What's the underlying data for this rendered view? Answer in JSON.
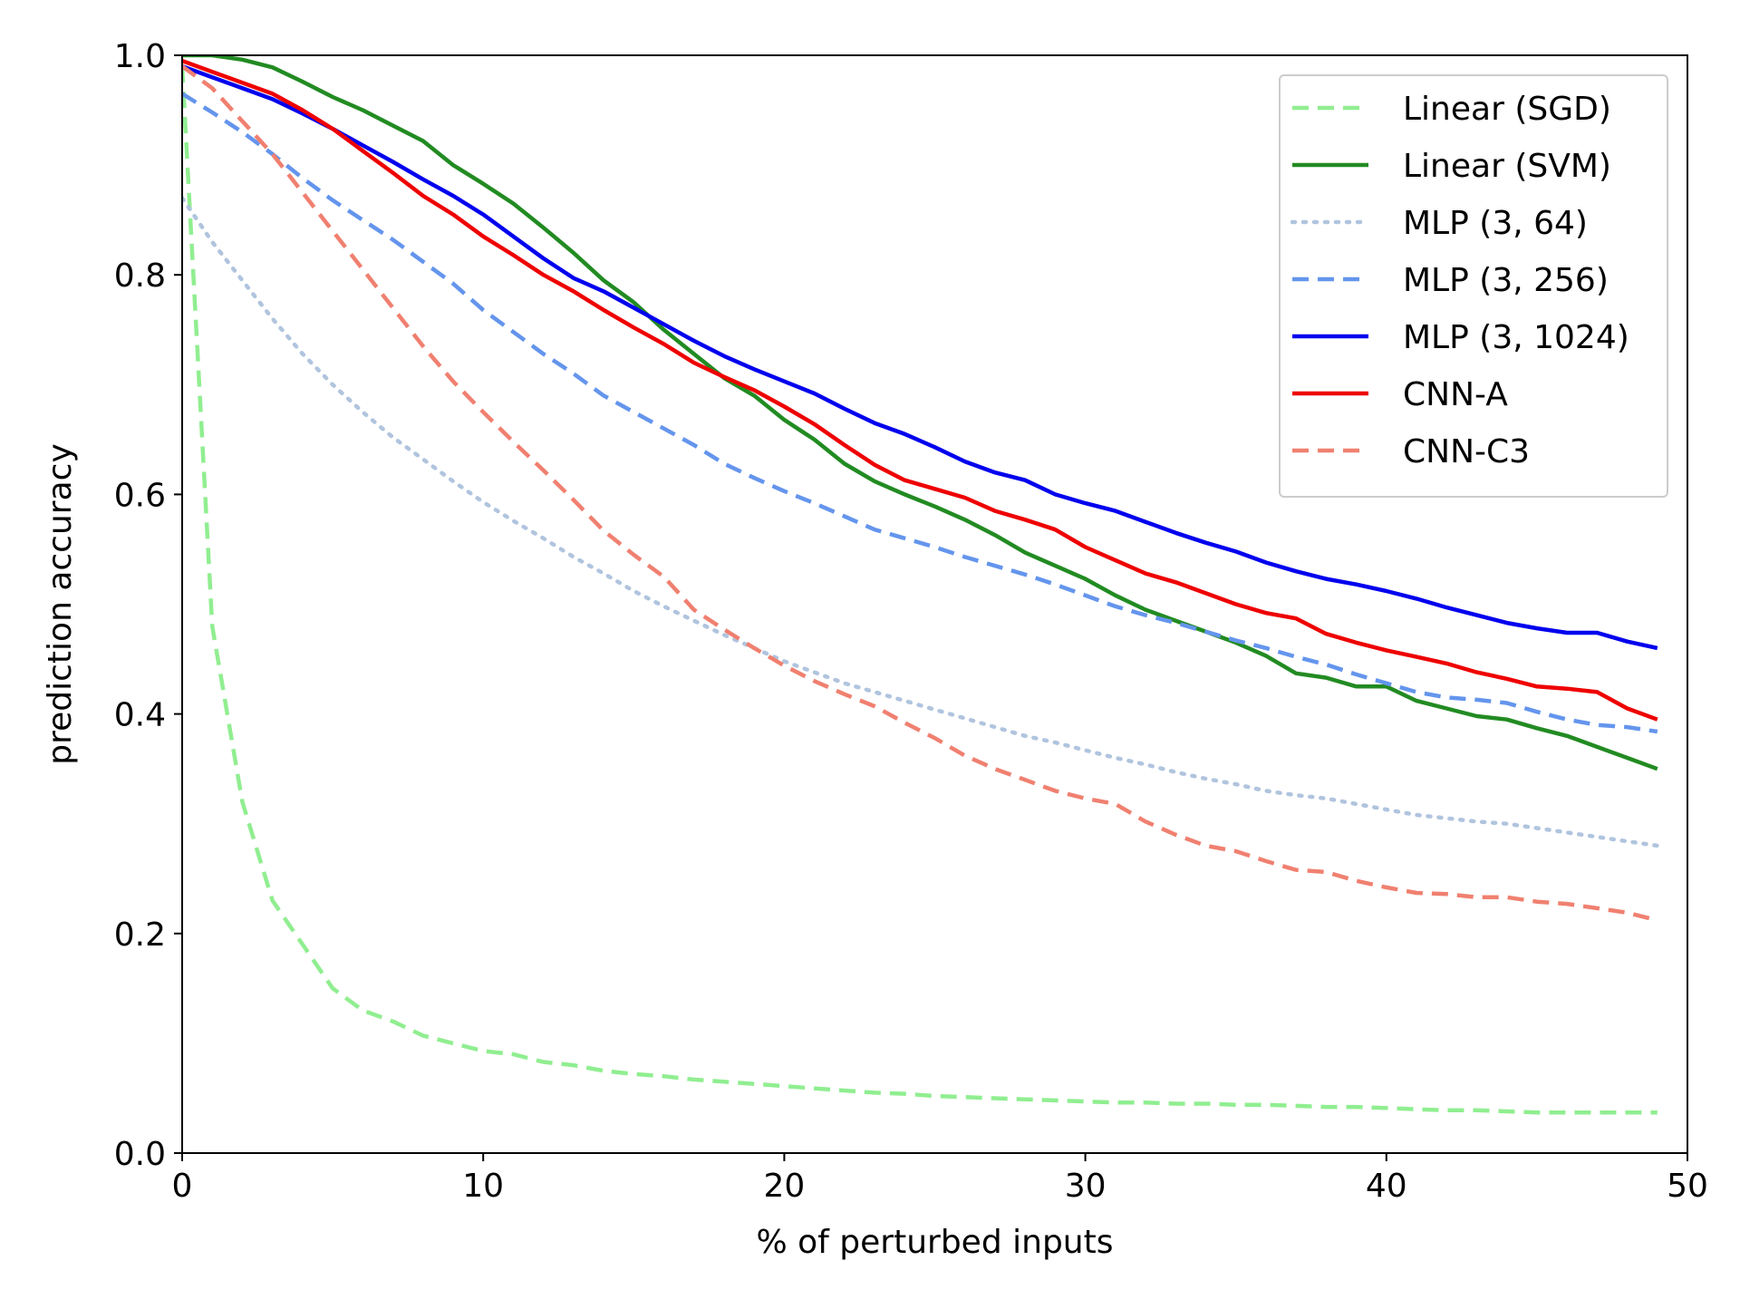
{
  "chart_data": {
    "type": "line",
    "xlabel": "% of perturbed inputs",
    "ylabel": "prediction accuracy",
    "xlim": [
      0,
      50
    ],
    "ylim": [
      0.0,
      1.0
    ],
    "x_ticks": [
      0,
      10,
      20,
      30,
      40,
      50
    ],
    "x_tick_labels": [
      "0",
      "10",
      "20",
      "30",
      "40",
      "50"
    ],
    "y_ticks": [
      0.0,
      0.2,
      0.4,
      0.6,
      0.8,
      1.0
    ],
    "y_tick_labels": [
      "0.0",
      "0.2",
      "0.4",
      "0.6",
      "0.8",
      "1.0"
    ],
    "grid": false,
    "legend_position": "top-right",
    "x": [
      0,
      1,
      2,
      3,
      4,
      5,
      6,
      7,
      8,
      9,
      10,
      11,
      12,
      13,
      14,
      15,
      16,
      17,
      18,
      19,
      20,
      21,
      22,
      23,
      24,
      25,
      26,
      27,
      28,
      29,
      30,
      31,
      32,
      33,
      34,
      35,
      36,
      37,
      38,
      39,
      40,
      41,
      42,
      43,
      44,
      45,
      46,
      47,
      48,
      49
    ],
    "series": [
      {
        "name": "Linear (SGD)",
        "color": "#90ee90",
        "line_style": "dashed",
        "values": [
          0.99,
          0.48,
          0.32,
          0.23,
          0.19,
          0.15,
          0.13,
          0.12,
          0.107,
          0.1,
          0.093,
          0.09,
          0.083,
          0.08,
          0.075,
          0.072,
          0.07,
          0.067,
          0.065,
          0.063,
          0.061,
          0.059,
          0.057,
          0.055,
          0.054,
          0.052,
          0.051,
          0.05,
          0.049,
          0.048,
          0.047,
          0.046,
          0.046,
          0.045,
          0.045,
          0.044,
          0.044,
          0.043,
          0.042,
          0.042,
          0.041,
          0.04,
          0.039,
          0.039,
          0.038,
          0.037,
          0.037,
          0.037,
          0.037,
          0.037
        ]
      },
      {
        "name": "Linear (SVM)",
        "color": "#228b22",
        "line_style": "solid",
        "values": [
          1.0,
          1.0,
          0.996,
          0.989,
          0.976,
          0.962,
          0.95,
          0.936,
          0.922,
          0.9,
          0.883,
          0.865,
          0.843,
          0.82,
          0.795,
          0.775,
          0.75,
          0.728,
          0.706,
          0.69,
          0.668,
          0.65,
          0.628,
          0.612,
          0.6,
          0.589,
          0.577,
          0.563,
          0.547,
          0.535,
          0.523,
          0.508,
          0.495,
          0.485,
          0.475,
          0.465,
          0.453,
          0.437,
          0.433,
          0.425,
          0.425,
          0.412,
          0.405,
          0.398,
          0.395,
          0.387,
          0.38,
          0.37,
          0.36,
          0.35
        ]
      },
      {
        "name": "MLP (3, 64)",
        "color": "#b0c4de",
        "line_style": "dotted",
        "values": [
          0.87,
          0.83,
          0.795,
          0.76,
          0.728,
          0.7,
          0.675,
          0.652,
          0.632,
          0.612,
          0.593,
          0.576,
          0.56,
          0.543,
          0.528,
          0.512,
          0.498,
          0.485,
          0.472,
          0.46,
          0.448,
          0.438,
          0.428,
          0.42,
          0.412,
          0.404,
          0.396,
          0.388,
          0.38,
          0.374,
          0.367,
          0.36,
          0.354,
          0.347,
          0.341,
          0.336,
          0.33,
          0.326,
          0.323,
          0.318,
          0.313,
          0.308,
          0.305,
          0.302,
          0.3,
          0.296,
          0.292,
          0.288,
          0.284,
          0.28
        ]
      },
      {
        "name": "MLP (3, 256)",
        "color": "#6495ed",
        "line_style": "dashed",
        "values": [
          0.965,
          0.948,
          0.93,
          0.91,
          0.888,
          0.868,
          0.85,
          0.832,
          0.812,
          0.792,
          0.768,
          0.748,
          0.728,
          0.71,
          0.69,
          0.675,
          0.66,
          0.645,
          0.628,
          0.615,
          0.603,
          0.592,
          0.58,
          0.568,
          0.56,
          0.552,
          0.543,
          0.535,
          0.527,
          0.518,
          0.508,
          0.498,
          0.49,
          0.483,
          0.475,
          0.467,
          0.46,
          0.452,
          0.445,
          0.436,
          0.428,
          0.42,
          0.415,
          0.413,
          0.41,
          0.402,
          0.395,
          0.39,
          0.388,
          0.384
        ]
      },
      {
        "name": "MLP (3, 1024)",
        "color": "#0000ee",
        "line_style": "solid",
        "values": [
          0.99,
          0.98,
          0.97,
          0.96,
          0.947,
          0.933,
          0.918,
          0.903,
          0.887,
          0.872,
          0.855,
          0.835,
          0.815,
          0.797,
          0.785,
          0.77,
          0.755,
          0.74,
          0.726,
          0.714,
          0.703,
          0.692,
          0.678,
          0.665,
          0.655,
          0.643,
          0.63,
          0.62,
          0.613,
          0.6,
          0.592,
          0.585,
          0.575,
          0.565,
          0.556,
          0.548,
          0.538,
          0.53,
          0.523,
          0.518,
          0.512,
          0.505,
          0.497,
          0.49,
          0.483,
          0.478,
          0.474,
          0.474,
          0.466,
          0.46
        ]
      },
      {
        "name": "CNN-A",
        "color": "#ee0000",
        "line_style": "solid",
        "values": [
          0.995,
          0.985,
          0.975,
          0.965,
          0.95,
          0.933,
          0.913,
          0.893,
          0.872,
          0.855,
          0.835,
          0.818,
          0.8,
          0.785,
          0.768,
          0.752,
          0.737,
          0.72,
          0.707,
          0.695,
          0.68,
          0.664,
          0.645,
          0.627,
          0.613,
          0.605,
          0.597,
          0.585,
          0.577,
          0.568,
          0.552,
          0.54,
          0.528,
          0.52,
          0.51,
          0.5,
          0.492,
          0.487,
          0.473,
          0.465,
          0.458,
          0.452,
          0.446,
          0.438,
          0.432,
          0.425,
          0.423,
          0.42,
          0.405,
          0.395
        ]
      },
      {
        "name": "CNN-C3",
        "color": "#f08070",
        "line_style": "dashed",
        "values": [
          0.99,
          0.97,
          0.94,
          0.91,
          0.875,
          0.84,
          0.805,
          0.77,
          0.735,
          0.703,
          0.675,
          0.648,
          0.622,
          0.595,
          0.567,
          0.545,
          0.525,
          0.495,
          0.477,
          0.46,
          0.444,
          0.43,
          0.418,
          0.407,
          0.392,
          0.378,
          0.362,
          0.35,
          0.34,
          0.33,
          0.323,
          0.318,
          0.302,
          0.29,
          0.28,
          0.275,
          0.266,
          0.258,
          0.256,
          0.248,
          0.242,
          0.237,
          0.236,
          0.233,
          0.233,
          0.229,
          0.227,
          0.223,
          0.219,
          0.212
        ]
      }
    ]
  }
}
